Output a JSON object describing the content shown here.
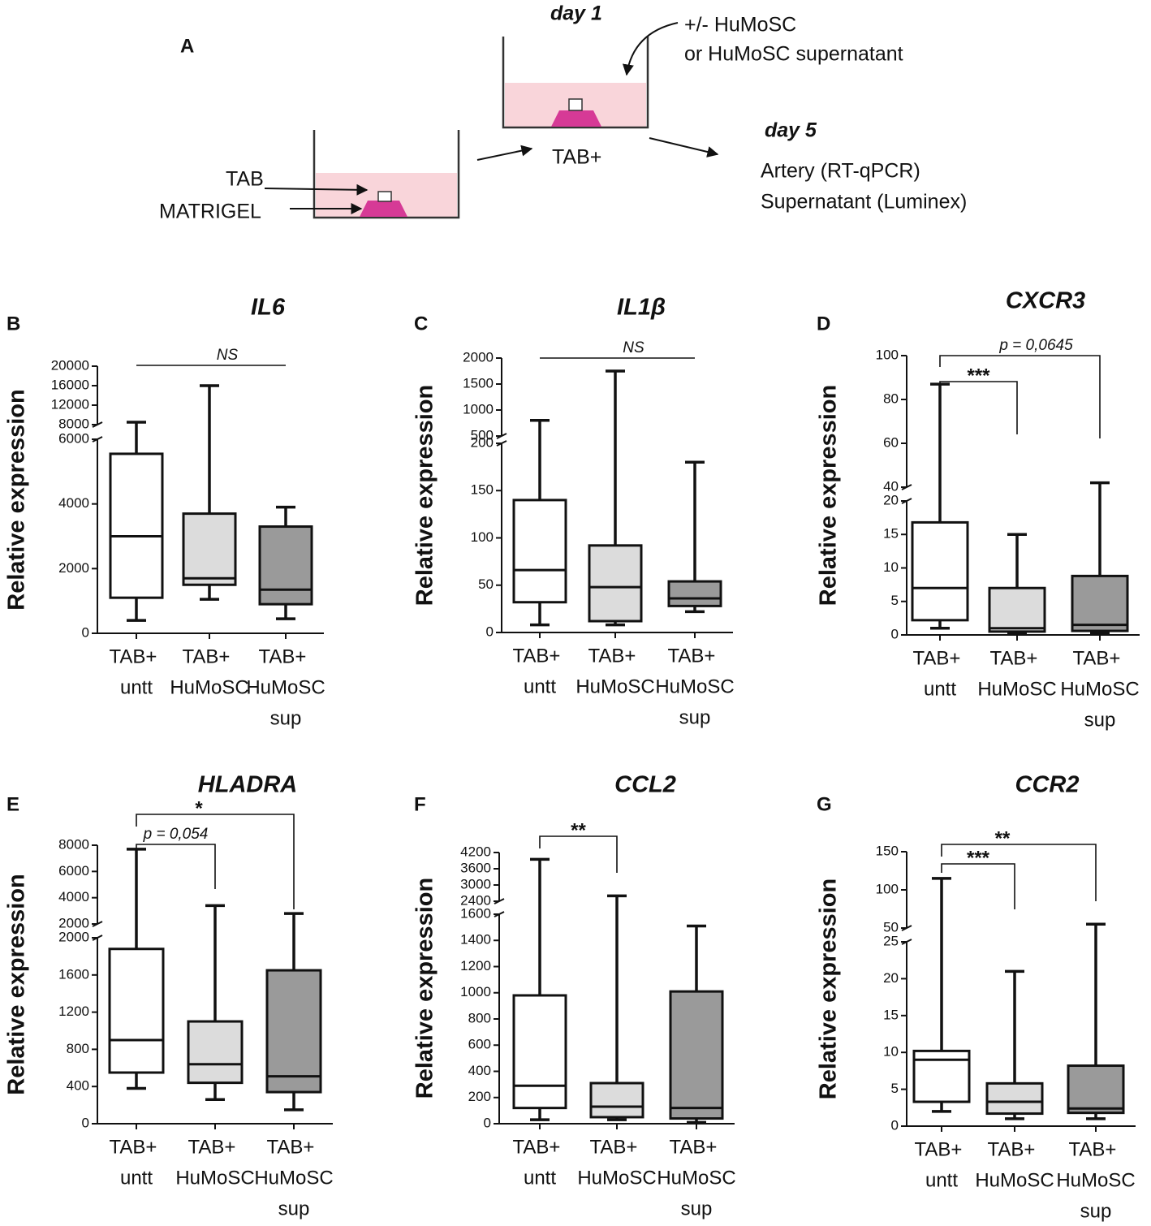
{
  "diagram": {
    "label": "A",
    "day1": "day 1",
    "addition": [
      "+/- HuMoSC",
      "or HuMoSC supernatant"
    ],
    "tab": "TAB",
    "matrigel": "MATRIGEL",
    "tab_plus": "TAB+",
    "day5": "day 5",
    "readouts": [
      "Artery (RT-qPCR)",
      "Supernatant (Luminex)"
    ]
  },
  "chart_data": [
    {
      "type": "box",
      "panel": "B",
      "title": "IL6",
      "ylabel": "Relative expression",
      "categories": [
        [
          "TAB+",
          "untt"
        ],
        [
          "TAB+",
          "HuMoSC"
        ],
        [
          "TAB+",
          "HuMoSC",
          "sup"
        ]
      ],
      "colors": [
        "#ffffff",
        "#dcdcdc",
        "#9a9a9a"
      ],
      "values": [
        [
          400,
          1100,
          3000,
          5550,
          8500
        ],
        [
          1050,
          1500,
          1700,
          3700,
          16000
        ],
        [
          450,
          900,
          1350,
          3300,
          3900
        ]
      ],
      "ylim": [
        0,
        6000
      ],
      "yticks": [
        0,
        2000,
        4000,
        6000
      ],
      "ylim_top": [
        8000,
        20000
      ],
      "yticks_top": [
        8000,
        12000,
        16000,
        20000
      ],
      "annotations": [
        {
          "from": 0,
          "to": 2,
          "label": "NS"
        }
      ]
    },
    {
      "type": "box",
      "panel": "C",
      "title": "IL1β",
      "ylabel": "Relative expression",
      "categories": [
        [
          "TAB+",
          "untt"
        ],
        [
          "TAB+",
          "HuMoSC"
        ],
        [
          "TAB+",
          "HuMoSC",
          "sup"
        ]
      ],
      "colors": [
        "#ffffff",
        "#dcdcdc",
        "#9a9a9a"
      ],
      "values": [
        [
          8,
          32,
          66,
          140,
          800
        ],
        [
          8,
          12,
          48,
          92,
          1750
        ],
        [
          22,
          28,
          36,
          54,
          180
        ]
      ],
      "ylim": [
        0,
        200
      ],
      "yticks": [
        0,
        50,
        100,
        150,
        200
      ],
      "ylim_top": [
        500,
        2000
      ],
      "yticks_top": [
        500,
        1000,
        1500,
        2000
      ],
      "annotations": [
        {
          "from": 0,
          "to": 2,
          "label": "NS"
        }
      ]
    },
    {
      "type": "box",
      "panel": "D",
      "title": "CXCR3",
      "ylabel": "Relative expression",
      "categories": [
        [
          "TAB+",
          "untt"
        ],
        [
          "TAB+",
          "HuMoSC"
        ],
        [
          "TAB+",
          "HuMoSC",
          "sup"
        ]
      ],
      "colors": [
        "#ffffff",
        "#dcdcdc",
        "#9a9a9a"
      ],
      "values": [
        [
          1,
          2.2,
          7,
          16.8,
          87
        ],
        [
          0.3,
          0.5,
          1,
          7,
          15
        ],
        [
          0.3,
          0.6,
          1.5,
          8.8,
          42
        ]
      ],
      "ylim": [
        0,
        20
      ],
      "yticks": [
        0,
        5,
        10,
        15,
        20
      ],
      "ylim_top": [
        40,
        100
      ],
      "yticks_top": [
        40,
        60,
        80,
        100
      ],
      "annotations": [
        {
          "from": 0,
          "to": 1,
          "label": "***"
        },
        {
          "from": 0,
          "to": 2,
          "label": "p = 0,0645"
        }
      ]
    },
    {
      "type": "box",
      "panel": "E",
      "title": "HLADRA",
      "ylabel": "Relative expression",
      "categories": [
        [
          "TAB+",
          "untt"
        ],
        [
          "TAB+",
          "HuMoSC"
        ],
        [
          "TAB+",
          "HuMoSC",
          "sup"
        ]
      ],
      "colors": [
        "#ffffff",
        "#dcdcdc",
        "#9a9a9a"
      ],
      "values": [
        [
          380,
          550,
          900,
          1880,
          7700
        ],
        [
          260,
          440,
          640,
          1100,
          3400
        ],
        [
          150,
          340,
          510,
          1650,
          2800
        ]
      ],
      "ylim": [
        0,
        2000
      ],
      "yticks": [
        0,
        400,
        800,
        1200,
        1600,
        2000
      ],
      "ylim_top": [
        2000,
        8000
      ],
      "yticks_top": [
        2000,
        4000,
        6000,
        8000
      ],
      "annotations": [
        {
          "from": 0,
          "to": 1,
          "label": "p = 0,054"
        },
        {
          "from": 0,
          "to": 2,
          "label": "*"
        }
      ]
    },
    {
      "type": "box",
      "panel": "F",
      "title": "CCL2",
      "ylabel": "Relative expression",
      "categories": [
        [
          "TAB+",
          "untt"
        ],
        [
          "TAB+",
          "HuMoSC"
        ],
        [
          "TAB+",
          "HuMoSC",
          "sup"
        ]
      ],
      "colors": [
        "#ffffff",
        "#dcdcdc",
        "#9a9a9a"
      ],
      "values": [
        [
          30,
          120,
          290,
          980,
          3950
        ],
        [
          30,
          50,
          130,
          310,
          2600
        ],
        [
          10,
          40,
          120,
          1010,
          1510
        ]
      ],
      "ylim": [
        0,
        1600
      ],
      "yticks": [
        0,
        200,
        400,
        600,
        800,
        1000,
        1200,
        1400,
        1600
      ],
      "ylim_top": [
        2400,
        4200
      ],
      "yticks_top": [
        2400,
        3000,
        3600,
        4200
      ],
      "annotations": [
        {
          "from": 0,
          "to": 1,
          "label": "**"
        }
      ]
    },
    {
      "type": "box",
      "panel": "G",
      "title": "CCR2",
      "ylabel": "Relative expression",
      "categories": [
        [
          "TAB+",
          "untt"
        ],
        [
          "TAB+",
          "HuMoSC"
        ],
        [
          "TAB+",
          "HuMoSC",
          "sup"
        ]
      ],
      "colors": [
        "#ffffff",
        "#dcdcdc",
        "#9a9a9a"
      ],
      "values": [
        [
          2,
          3.3,
          9,
          10.2,
          115
        ],
        [
          1,
          1.7,
          3.3,
          5.8,
          21
        ],
        [
          1,
          1.8,
          2.4,
          8.2,
          55
        ]
      ],
      "ylim": [
        0,
        25
      ],
      "yticks": [
        0,
        5,
        10,
        15,
        20,
        25
      ],
      "ylim_top": [
        50,
        150
      ],
      "yticks_top": [
        50,
        100,
        150
      ],
      "annotations": [
        {
          "from": 0,
          "to": 1,
          "label": "***"
        },
        {
          "from": 0,
          "to": 2,
          "label": "**"
        }
      ]
    }
  ]
}
